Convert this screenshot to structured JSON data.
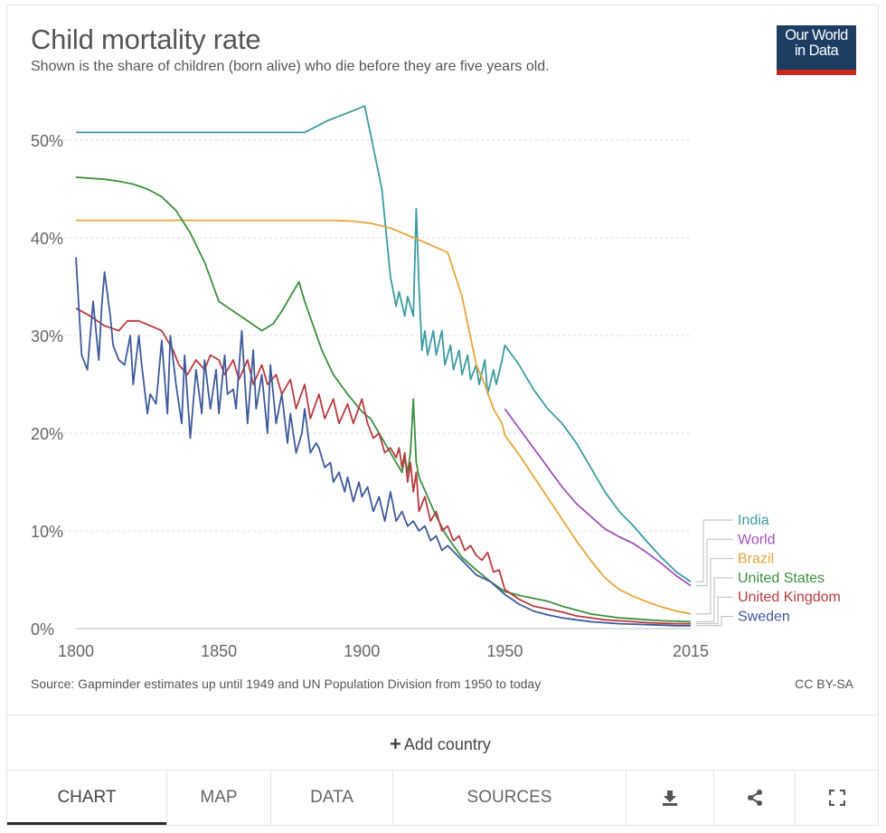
{
  "header": {
    "title": "Child mortality rate",
    "subtitle": "Shown is the share of children (born alive) who die before they are five years old.",
    "logo_line1": "Our World",
    "logo_line2": "in Data"
  },
  "footer": {
    "source": "Source: Gapminder estimates up until 1949 and UN Population Division from 1950 to today",
    "license": "CC BY-SA"
  },
  "controls": {
    "add_country": "Add country"
  },
  "tabs": {
    "chart": "CHART",
    "map": "MAP",
    "data": "DATA",
    "sources": "SOURCES"
  },
  "chart_data": {
    "type": "line",
    "title": "Child mortality rate",
    "xlabel": "",
    "ylabel": "",
    "xlim": [
      1800,
      2015
    ],
    "ylim": [
      0,
      55
    ],
    "x_ticks": [
      1800,
      1850,
      1900,
      1950,
      2015
    ],
    "x_tick_labels": [
      "1800",
      "1850",
      "1900",
      "1950",
      "2015"
    ],
    "y_ticks": [
      0,
      10,
      20,
      30,
      40,
      50
    ],
    "y_tick_labels": [
      "0%",
      "10%",
      "20%",
      "30%",
      "40%",
      "50%"
    ],
    "grid": "horizontal-dashed",
    "series": [
      {
        "name": "India",
        "color": "#3c9ba1",
        "x": [
          1800,
          1880,
          1888,
          1895,
          1901,
          1907,
          1910,
          1912,
          1913,
          1915,
          1916,
          1918,
          1919,
          1920,
          1921,
          1922,
          1923,
          1925,
          1926,
          1928,
          1929,
          1931,
          1932,
          1934,
          1935,
          1937,
          1938,
          1940,
          1941,
          1943,
          1944,
          1946,
          1947,
          1949,
          1950,
          1955,
          1960,
          1965,
          1970,
          1975,
          1980,
          1985,
          1990,
          1995,
          2000,
          2005,
          2010,
          2015
        ],
        "y": [
          50.8,
          50.8,
          52.0,
          52.8,
          53.5,
          45.0,
          36.0,
          33.0,
          34.5,
          32.0,
          34.0,
          32.0,
          43.0,
          35.0,
          28.5,
          30.5,
          28.0,
          30.5,
          28.0,
          30.5,
          27.0,
          29.0,
          26.5,
          28.5,
          26.0,
          28.0,
          25.5,
          27.0,
          25.0,
          27.5,
          24.0,
          26.5,
          25.0,
          27.5,
          29.0,
          27.0,
          24.5,
          22.5,
          21.0,
          19.0,
          16.5,
          14.0,
          12.0,
          10.5,
          8.8,
          7.2,
          5.8,
          4.8
        ]
      },
      {
        "name": "World",
        "color": "#a052b8",
        "x": [
          1950,
          1955,
          1960,
          1965,
          1970,
          1975,
          1980,
          1985,
          1990,
          1995,
          2000,
          2005,
          2010,
          2015
        ],
        "y": [
          22.5,
          20.5,
          18.5,
          16.5,
          14.5,
          12.8,
          11.5,
          10.2,
          9.4,
          8.7,
          7.7,
          6.6,
          5.4,
          4.4
        ]
      },
      {
        "name": "Brazil",
        "color": "#e6a63a",
        "x": [
          1800,
          1890,
          1897,
          1903,
          1910,
          1920,
          1930,
          1935,
          1940,
          1943,
          1946,
          1949,
          1950,
          1955,
          1960,
          1965,
          1970,
          1975,
          1980,
          1985,
          1990,
          1995,
          2000,
          2005,
          2010,
          2015
        ],
        "y": [
          41.8,
          41.8,
          41.7,
          41.5,
          41.0,
          39.8,
          38.5,
          34.0,
          27.0,
          25.0,
          22.5,
          21.0,
          19.8,
          17.8,
          15.6,
          13.4,
          11.2,
          9.0,
          7.0,
          5.2,
          4.0,
          3.3,
          2.7,
          2.2,
          1.8,
          1.5
        ]
      },
      {
        "name": "United States",
        "color": "#3c8f3e",
        "x": [
          1800,
          1810,
          1815,
          1820,
          1825,
          1830,
          1835,
          1840,
          1845,
          1850,
          1855,
          1860,
          1865,
          1869,
          1872,
          1875,
          1878,
          1880,
          1883,
          1886,
          1890,
          1895,
          1900,
          1903,
          1906,
          1909,
          1912,
          1914,
          1915,
          1916,
          1917,
          1918,
          1919,
          1920,
          1923,
          1926,
          1929,
          1932,
          1935,
          1940,
          1945,
          1950,
          1955,
          1960,
          1965,
          1970,
          1975,
          1980,
          1985,
          1990,
          1995,
          2000,
          2005,
          2010,
          2015
        ],
        "y": [
          46.2,
          46.0,
          45.8,
          45.5,
          45.0,
          44.2,
          42.8,
          40.5,
          37.5,
          33.5,
          32.5,
          31.5,
          30.5,
          31.2,
          32.5,
          34.0,
          35.5,
          33.5,
          31.0,
          28.5,
          26.0,
          24.0,
          22.2,
          21.5,
          20.0,
          18.5,
          17.0,
          16.0,
          17.5,
          16.0,
          18.0,
          23.5,
          17.0,
          15.5,
          13.5,
          11.5,
          9.8,
          8.5,
          7.3,
          6.0,
          4.8,
          3.8,
          3.4,
          3.1,
          2.8,
          2.3,
          1.9,
          1.5,
          1.3,
          1.1,
          1.0,
          0.9,
          0.8,
          0.75,
          0.7
        ]
      },
      {
        "name": "United Kingdom",
        "color": "#b93a3e",
        "x": [
          1800,
          1805,
          1810,
          1815,
          1818,
          1822,
          1826,
          1830,
          1834,
          1836,
          1839,
          1842,
          1845,
          1847,
          1850,
          1852,
          1855,
          1857,
          1860,
          1862,
          1865,
          1867,
          1870,
          1872,
          1875,
          1877,
          1880,
          1882,
          1885,
          1887,
          1890,
          1892,
          1895,
          1897,
          1900,
          1902,
          1904,
          1906,
          1908,
          1910,
          1912,
          1913,
          1914,
          1915,
          1916,
          1917,
          1918,
          1919,
          1920,
          1922,
          1924,
          1926,
          1928,
          1930,
          1932,
          1934,
          1936,
          1938,
          1940,
          1942,
          1944,
          1946,
          1948,
          1950,
          1955,
          1960,
          1965,
          1970,
          1975,
          1980,
          1985,
          1990,
          1995,
          2000,
          2005,
          2010,
          2015
        ],
        "y": [
          32.8,
          32.0,
          31.0,
          30.5,
          31.5,
          31.5,
          31.0,
          30.5,
          28.5,
          27.0,
          26.0,
          27.5,
          26.5,
          28.0,
          27.5,
          26.0,
          27.5,
          25.5,
          27.5,
          25.0,
          27.0,
          25.0,
          26.0,
          24.0,
          25.5,
          22.5,
          25.0,
          21.5,
          24.0,
          21.5,
          23.5,
          21.0,
          23.0,
          21.0,
          23.5,
          21.0,
          19.5,
          20.0,
          18.0,
          18.5,
          17.5,
          18.5,
          16.5,
          18.0,
          15.0,
          17.0,
          14.0,
          16.0,
          12.0,
          13.5,
          11.0,
          12.0,
          10.0,
          10.5,
          9.0,
          9.5,
          8.0,
          8.5,
          7.5,
          7.0,
          7.8,
          5.8,
          6.0,
          4.0,
          3.0,
          2.3,
          2.0,
          1.7,
          1.3,
          1.1,
          0.9,
          0.8,
          0.7,
          0.6,
          0.55,
          0.5,
          0.5
        ]
      },
      {
        "name": "Sweden",
        "color": "#3e5a9a",
        "x": [
          1800,
          1802,
          1804,
          1806,
          1808,
          1809,
          1810,
          1812,
          1813,
          1815,
          1817,
          1819,
          1820,
          1822,
          1823,
          1825,
          1826,
          1828,
          1830,
          1832,
          1833,
          1835,
          1837,
          1838,
          1840,
          1842,
          1844,
          1845,
          1847,
          1849,
          1850,
          1852,
          1853,
          1855,
          1856,
          1858,
          1860,
          1862,
          1863,
          1865,
          1867,
          1868,
          1870,
          1872,
          1874,
          1875,
          1877,
          1879,
          1880,
          1882,
          1884,
          1885,
          1887,
          1889,
          1890,
          1892,
          1894,
          1895,
          1897,
          1899,
          1900,
          1902,
          1904,
          1906,
          1908,
          1910,
          1912,
          1914,
          1916,
          1918,
          1920,
          1922,
          1924,
          1926,
          1928,
          1930,
          1935,
          1940,
          1945,
          1950,
          1955,
          1960,
          1965,
          1970,
          1975,
          1980,
          1985,
          1990,
          1995,
          2000,
          2005,
          2010,
          2015
        ],
        "y": [
          38.0,
          28.0,
          26.5,
          33.5,
          27.5,
          33.0,
          36.5,
          32.0,
          29.0,
          27.5,
          27.0,
          30.0,
          25.0,
          30.0,
          27.0,
          22.0,
          24.0,
          23.0,
          29.5,
          22.0,
          30.0,
          25.0,
          21.0,
          28.0,
          19.5,
          26.5,
          22.0,
          27.5,
          22.5,
          26.5,
          22.0,
          28.0,
          24.0,
          24.5,
          22.5,
          30.5,
          21.0,
          28.5,
          22.5,
          26.0,
          20.0,
          27.0,
          21.0,
          24.0,
          19.0,
          22.0,
          18.0,
          20.0,
          22.5,
          18.0,
          19.0,
          18.5,
          16.5,
          17.0,
          15.0,
          16.0,
          14.0,
          15.5,
          13.0,
          15.0,
          13.5,
          14.5,
          12.0,
          13.5,
          11.0,
          14.0,
          11.0,
          12.0,
          10.5,
          11.0,
          10.0,
          10.5,
          9.0,
          9.5,
          8.0,
          8.5,
          7.0,
          5.5,
          4.8,
          3.5,
          2.5,
          1.8,
          1.4,
          1.1,
          0.9,
          0.7,
          0.6,
          0.5,
          0.45,
          0.4,
          0.35,
          0.3,
          0.3
        ]
      }
    ]
  }
}
